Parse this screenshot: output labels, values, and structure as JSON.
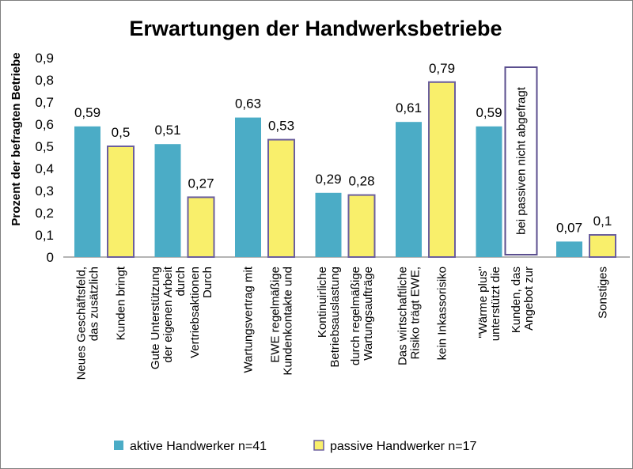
{
  "chart_data": {
    "type": "bar",
    "title": "Erwartungen der Handwerksbetriebe",
    "ylabel": "Prozent der befragten Betriebe",
    "xlabel": "",
    "ylim": [
      0,
      0.9
    ],
    "yticks": [
      "0",
      "0,1",
      "0,2",
      "0,3",
      "0,4",
      "0,5",
      "0,6",
      "0,7",
      "0,8",
      "0,9"
    ],
    "grid": false,
    "legend_position": "bottom",
    "categories": [
      {
        "series0_lines": [
          "Neues Geschäftsfeld,",
          "das zusätzlich"
        ],
        "series1_lines": [
          "Kunden bringt"
        ]
      },
      {
        "series0_lines": [
          "Gute Unterstützung",
          "der eigenen Arbeit",
          "durch"
        ],
        "series1_lines": [
          "Vertriebsaktionen",
          "Durch"
        ]
      },
      {
        "series0_lines": [
          "Wartungsvertrag mit"
        ],
        "series1_lines": [
          "EWE regelmäßige",
          "Kundenkontakte und"
        ]
      },
      {
        "series0_lines": [
          "Kontinuirliche",
          "Betriebsauslastung"
        ],
        "series1_lines": [
          "durch regelmäßige",
          "Wartungsaufträge"
        ]
      },
      {
        "series0_lines": [
          "Das wirtschaftliche",
          "Risiko trägt EWE,"
        ],
        "series1_lines": [
          "kein Inkassorisiko"
        ]
      },
      {
        "series0_lines": [
          "\"Wärme plus\"",
          "unterstützt die"
        ],
        "series1_lines": [
          "Kunden, das",
          "Angebot zur"
        ]
      },
      {
        "series0_lines": [],
        "series1_lines": [
          "Sonstiges"
        ]
      }
    ],
    "series": [
      {
        "name": "aktive Handwerker n=41",
        "color": "#4bacc6",
        "values": [
          0.59,
          0.51,
          0.63,
          0.29,
          0.61,
          0.59,
          0.07
        ],
        "value_labels": [
          "0,59",
          "0,51",
          "0,63",
          "0,29",
          "0,61",
          "0,59",
          "0,07"
        ]
      },
      {
        "name": "passive Handwerker n=17",
        "color": "#f9ef6b",
        "border_color": "#6b5f9e",
        "values": [
          0.5,
          0.27,
          0.53,
          0.28,
          0.79,
          null,
          0.1
        ],
        "value_labels": [
          "0,5",
          "0,27",
          "0,53",
          "0,28",
          "0,79",
          "",
          "0,1"
        ]
      }
    ],
    "annotations": [
      {
        "category_index": 5,
        "series_index": 1,
        "text": "bei passiven nicht abgefragt"
      }
    ]
  }
}
